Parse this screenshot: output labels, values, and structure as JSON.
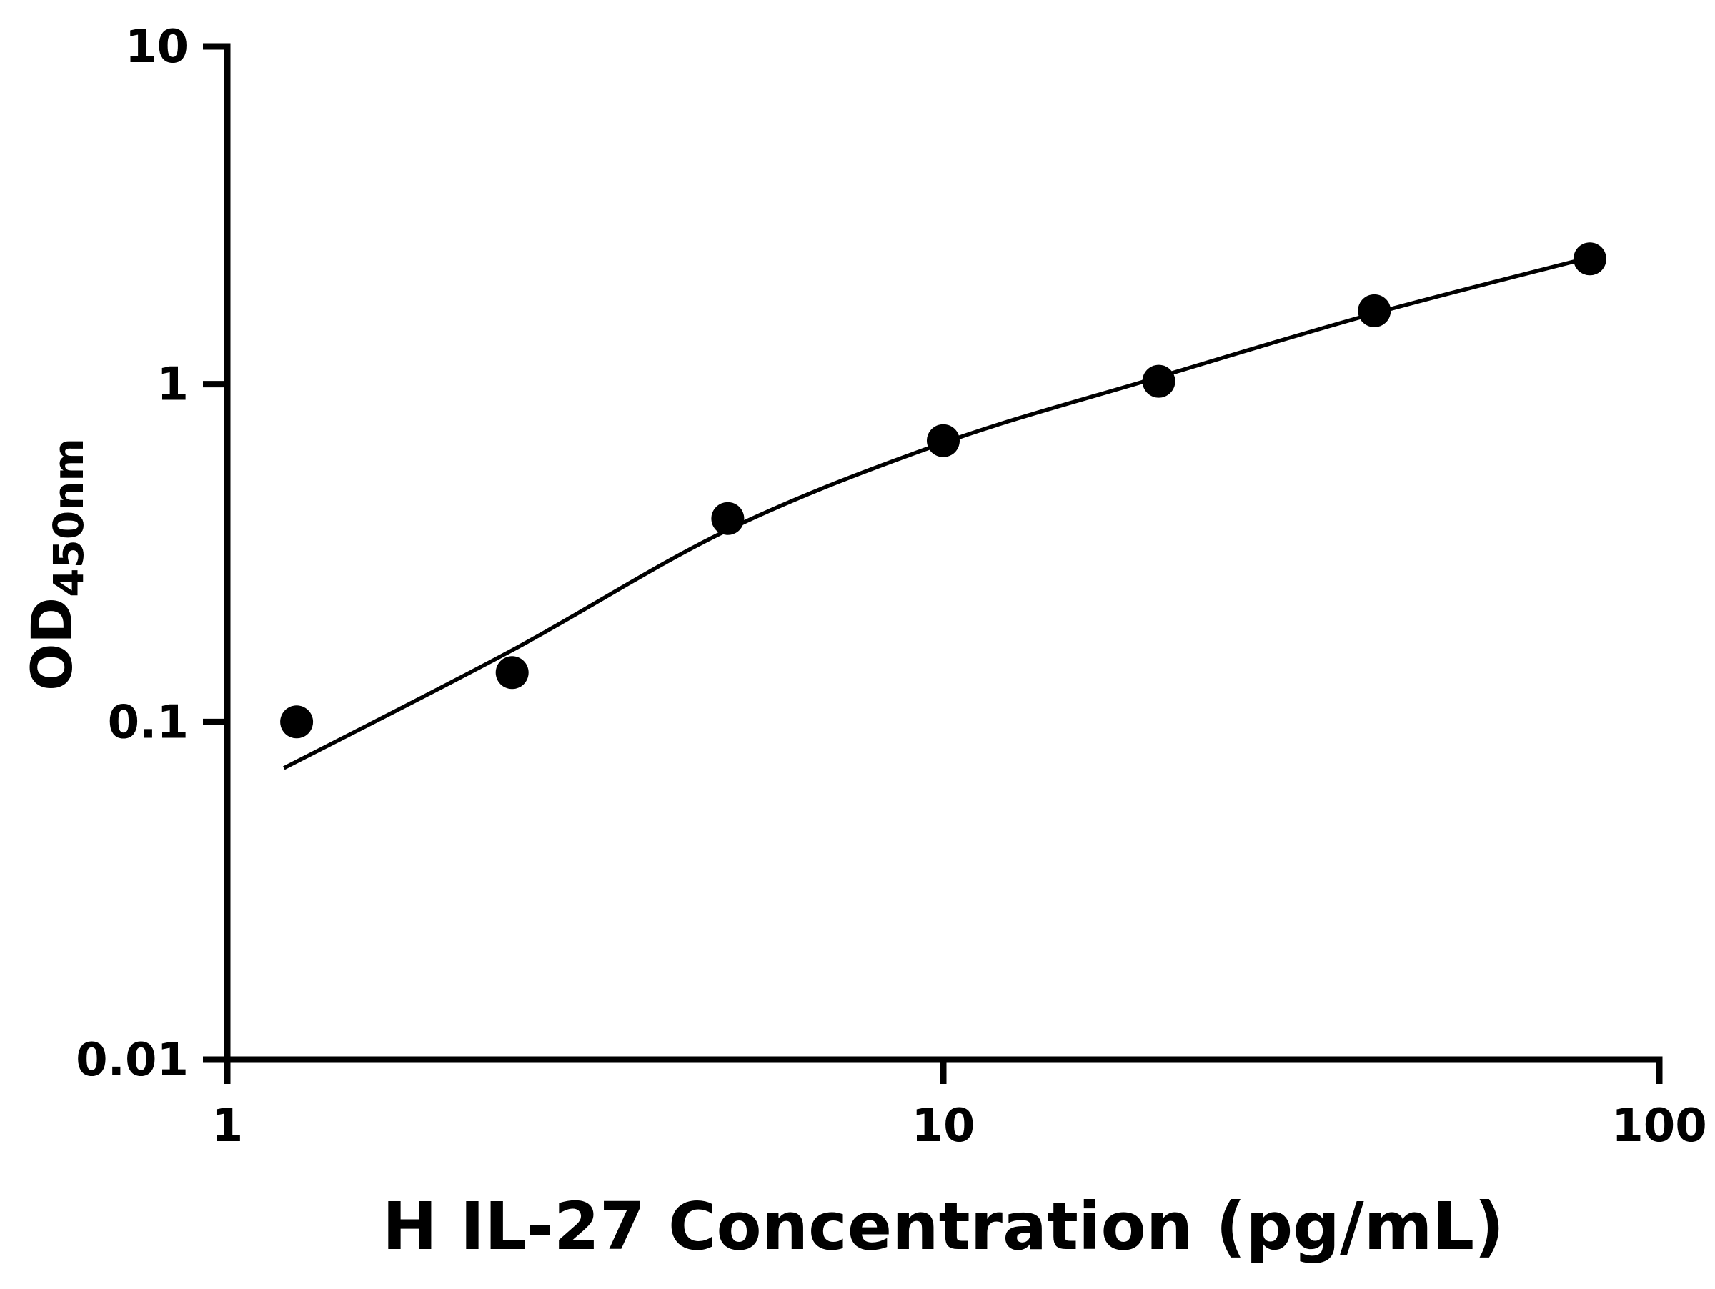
{
  "chart_data": {
    "type": "scatter",
    "title": "",
    "xlabel": "H IL-27 Concentration (pg/mL)",
    "ylabel": "OD",
    "ylabel_subscript": "450nm",
    "xscale": "log",
    "yscale": "log",
    "xlim": [
      1,
      100
    ],
    "ylim": [
      0.01,
      10
    ],
    "xticks": [
      "1",
      "10",
      "100"
    ],
    "yticks": [
      "0.01",
      "0.1",
      "1",
      "10"
    ],
    "grid": false,
    "legend": "none",
    "marker_color": "#000000",
    "line_color": "#000000",
    "background_color": "#ffffff",
    "points": [
      {
        "x": 1.25,
        "y": 0.1
      },
      {
        "x": 2.5,
        "y": 0.14
      },
      {
        "x": 5,
        "y": 0.4
      },
      {
        "x": 10,
        "y": 0.68
      },
      {
        "x": 20,
        "y": 1.02
      },
      {
        "x": 40,
        "y": 1.65
      },
      {
        "x": 80,
        "y": 2.35
      }
    ],
    "fit_curve": [
      {
        "x": 1.2,
        "y": 0.073
      },
      {
        "x": 2.5,
        "y": 0.163
      },
      {
        "x": 5,
        "y": 0.37
      },
      {
        "x": 10,
        "y": 0.67
      },
      {
        "x": 20,
        "y": 1.05
      },
      {
        "x": 40,
        "y": 1.62
      },
      {
        "x": 83,
        "y": 2.42
      }
    ]
  }
}
